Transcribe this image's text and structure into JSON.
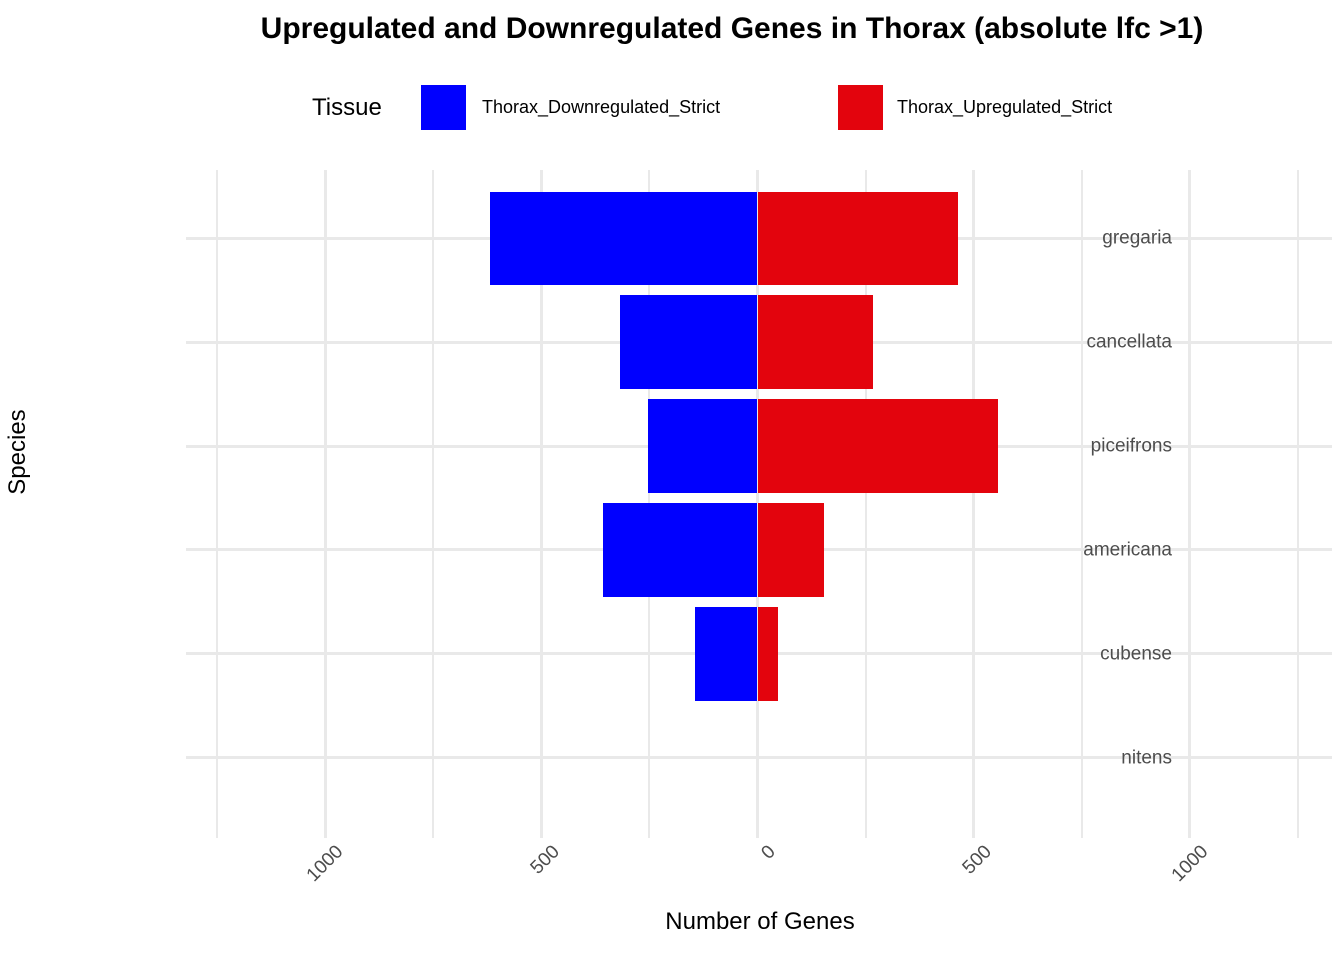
{
  "title": "Upregulated and Downregulated Genes in Thorax (absolute lfc >1)",
  "legend": {
    "title": "Tissue",
    "items": [
      {
        "label": "Thorax_Downregulated_Strict",
        "color": "#0000FF"
      },
      {
        "label": "Thorax_Upregulated_Strict",
        "color": "#E3040D"
      }
    ]
  },
  "chart_data": {
    "type": "bar",
    "orientation": "horizontal-diverging",
    "title": "Upregulated and Downregulated Genes in Thorax (absolute lfc >1)",
    "xlabel": "Number of Genes",
    "ylabel": "Species",
    "categories": [
      "gregaria",
      "cancellata",
      "piceifrons",
      "americana",
      "cubense",
      "nitens"
    ],
    "series": [
      {
        "name": "Thorax_Downregulated_Strict",
        "direction": "left",
        "color": "#0000FF",
        "values": [
          619,
          319,
          254,
          357,
          145,
          0
        ]
      },
      {
        "name": "Thorax_Upregulated_Strict",
        "direction": "right",
        "color": "#E3040D",
        "values": [
          464,
          266,
          557,
          154,
          47,
          0
        ]
      }
    ],
    "x_ticks_major": [
      -1000,
      -500,
      0,
      500,
      1000
    ],
    "x_tick_labels": [
      "1000",
      "500",
      "0",
      "500",
      "1000"
    ],
    "x_ticks_minor": [
      -1250,
      -750,
      -250,
      250,
      750,
      1250
    ],
    "xlim": [
      -1255,
      1356
    ],
    "grid": "on",
    "grid_color": "#E9E9E9",
    "axis_text_color": "#4D4D4D",
    "legend_position": "top"
  }
}
